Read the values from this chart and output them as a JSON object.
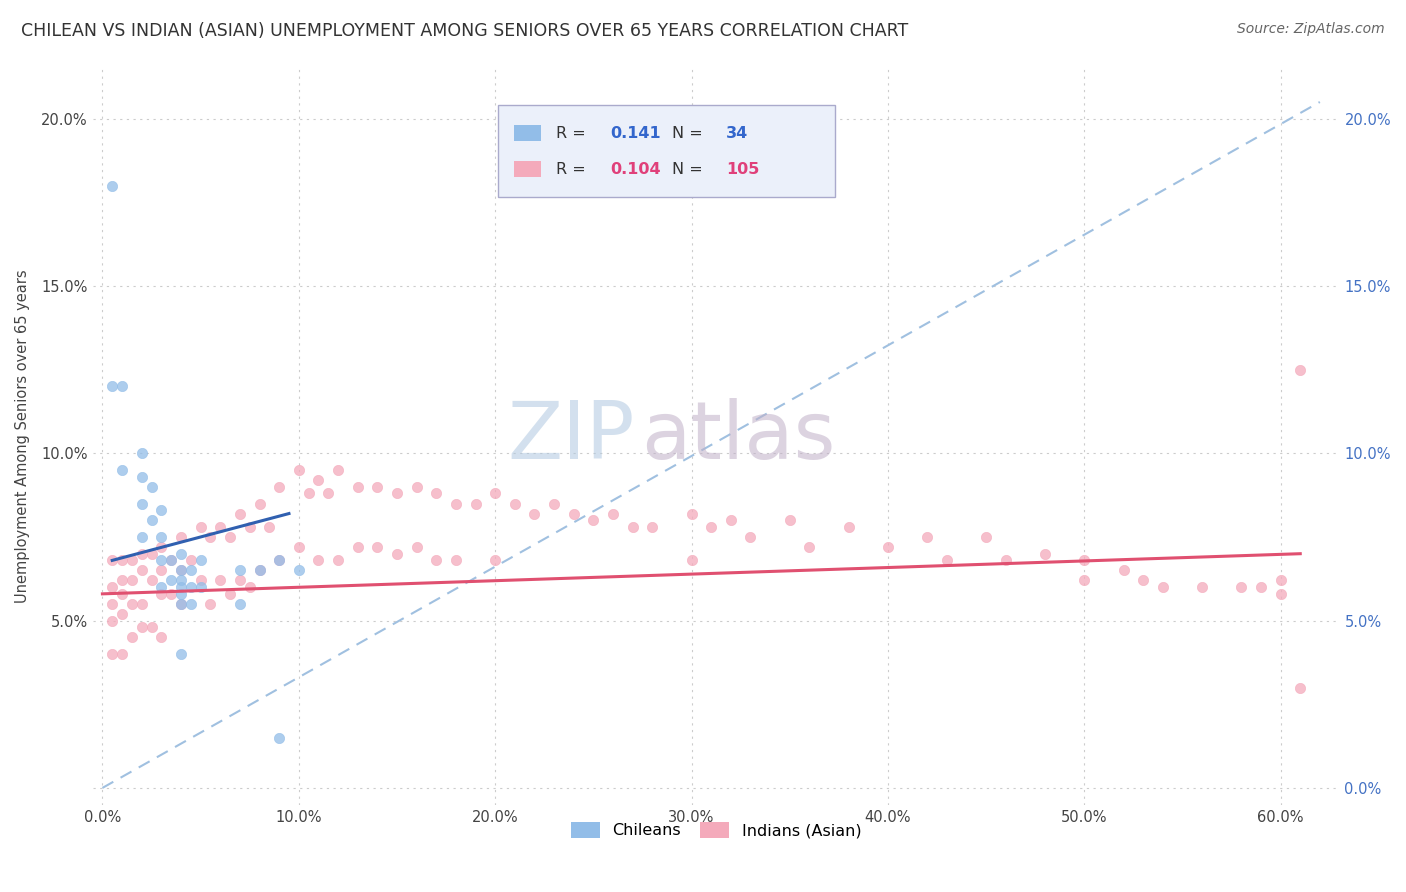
{
  "title": "CHILEAN VS INDIAN (ASIAN) UNEMPLOYMENT AMONG SENIORS OVER 65 YEARS CORRELATION CHART",
  "source": "Source: ZipAtlas.com",
  "ylabel": "Unemployment Among Seniors over 65 years",
  "xlabel_ticks": [
    "0.0%",
    "10.0%",
    "20.0%",
    "30.0%",
    "40.0%",
    "50.0%",
    "60.0%"
  ],
  "xlabel_vals": [
    0.0,
    0.1,
    0.2,
    0.3,
    0.4,
    0.5,
    0.6
  ],
  "ylabel_ticks_left": [
    "",
    "5.0%",
    "10.0%",
    "15.0%",
    "20.0%"
  ],
  "ylabel_ticks_right": [
    "0.0%",
    "5.0%",
    "10.0%",
    "15.0%",
    "20.0%"
  ],
  "ylabel_vals": [
    0.0,
    0.05,
    0.1,
    0.15,
    0.2
  ],
  "xlim": [
    -0.005,
    0.63
  ],
  "ylim": [
    -0.005,
    0.215
  ],
  "chilean_R": 0.141,
  "chilean_N": 34,
  "indian_R": 0.104,
  "indian_N": 105,
  "chilean_color": "#92BDE8",
  "chilean_line_color": "#3060B0",
  "indian_color": "#F4AABB",
  "indian_line_color": "#E05070",
  "trendline_color": "#A0C0E0",
  "watermark_zip": "ZIP",
  "watermark_atlas": "atlas",
  "chilean_x": [
    0.005,
    0.005,
    0.01,
    0.01,
    0.02,
    0.02,
    0.02,
    0.02,
    0.025,
    0.025,
    0.03,
    0.03,
    0.03,
    0.03,
    0.035,
    0.035,
    0.04,
    0.04,
    0.04,
    0.04,
    0.04,
    0.04,
    0.04,
    0.045,
    0.045,
    0.045,
    0.05,
    0.05,
    0.07,
    0.07,
    0.08,
    0.09,
    0.09,
    0.1
  ],
  "chilean_y": [
    0.18,
    0.12,
    0.12,
    0.095,
    0.1,
    0.093,
    0.085,
    0.075,
    0.09,
    0.08,
    0.083,
    0.075,
    0.068,
    0.06,
    0.068,
    0.062,
    0.07,
    0.065,
    0.062,
    0.06,
    0.058,
    0.055,
    0.04,
    0.065,
    0.06,
    0.055,
    0.068,
    0.06,
    0.065,
    0.055,
    0.065,
    0.068,
    0.015,
    0.065
  ],
  "indian_x": [
    0.005,
    0.005,
    0.005,
    0.005,
    0.005,
    0.01,
    0.01,
    0.01,
    0.01,
    0.01,
    0.015,
    0.015,
    0.015,
    0.015,
    0.02,
    0.02,
    0.02,
    0.02,
    0.025,
    0.025,
    0.025,
    0.03,
    0.03,
    0.03,
    0.03,
    0.035,
    0.035,
    0.04,
    0.04,
    0.04,
    0.045,
    0.05,
    0.05,
    0.055,
    0.055,
    0.06,
    0.06,
    0.065,
    0.065,
    0.07,
    0.07,
    0.075,
    0.075,
    0.08,
    0.08,
    0.085,
    0.09,
    0.09,
    0.1,
    0.1,
    0.105,
    0.11,
    0.11,
    0.115,
    0.12,
    0.12,
    0.13,
    0.13,
    0.14,
    0.14,
    0.15,
    0.15,
    0.16,
    0.16,
    0.17,
    0.17,
    0.18,
    0.18,
    0.19,
    0.2,
    0.2,
    0.21,
    0.22,
    0.23,
    0.24,
    0.25,
    0.26,
    0.27,
    0.28,
    0.3,
    0.3,
    0.31,
    0.32,
    0.33,
    0.35,
    0.36,
    0.38,
    0.4,
    0.42,
    0.43,
    0.45,
    0.46,
    0.48,
    0.5,
    0.5,
    0.52,
    0.53,
    0.54,
    0.56,
    0.58,
    0.59,
    0.6,
    0.6,
    0.61,
    0.61
  ],
  "indian_y": [
    0.068,
    0.06,
    0.055,
    0.05,
    0.04,
    0.068,
    0.062,
    0.058,
    0.052,
    0.04,
    0.068,
    0.062,
    0.055,
    0.045,
    0.07,
    0.065,
    0.055,
    0.048,
    0.07,
    0.062,
    0.048,
    0.072,
    0.065,
    0.058,
    0.045,
    0.068,
    0.058,
    0.075,
    0.065,
    0.055,
    0.068,
    0.078,
    0.062,
    0.075,
    0.055,
    0.078,
    0.062,
    0.075,
    0.058,
    0.082,
    0.062,
    0.078,
    0.06,
    0.085,
    0.065,
    0.078,
    0.09,
    0.068,
    0.095,
    0.072,
    0.088,
    0.092,
    0.068,
    0.088,
    0.095,
    0.068,
    0.09,
    0.072,
    0.09,
    0.072,
    0.088,
    0.07,
    0.09,
    0.072,
    0.088,
    0.068,
    0.085,
    0.068,
    0.085,
    0.088,
    0.068,
    0.085,
    0.082,
    0.085,
    0.082,
    0.08,
    0.082,
    0.078,
    0.078,
    0.082,
    0.068,
    0.078,
    0.08,
    0.075,
    0.08,
    0.072,
    0.078,
    0.072,
    0.075,
    0.068,
    0.075,
    0.068,
    0.07,
    0.068,
    0.062,
    0.065,
    0.062,
    0.06,
    0.06,
    0.06,
    0.06,
    0.062,
    0.058,
    0.125,
    0.03
  ]
}
